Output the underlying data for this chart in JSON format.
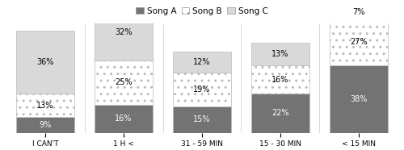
{
  "categories": [
    "I CAN'T",
    "1 H <",
    "31 - 59 MIN",
    "15 - 30 MIN",
    "< 15 MIN"
  ],
  "song_a": [
    9,
    16,
    15,
    22,
    38
  ],
  "song_b": [
    13,
    25,
    19,
    16,
    27
  ],
  "song_c": [
    36,
    32,
    12,
    13,
    7
  ],
  "song_a_color": "#737373",
  "song_b_color": "#ffffff",
  "song_c_color": "#d9d9d9",
  "bar_edge_color": "#bbbbbb",
  "bar_width": 0.75,
  "label_fontsize": 7.0,
  "tick_fontsize": 6.5,
  "legend_fontsize": 7.5,
  "ylim": [
    0,
    62
  ]
}
